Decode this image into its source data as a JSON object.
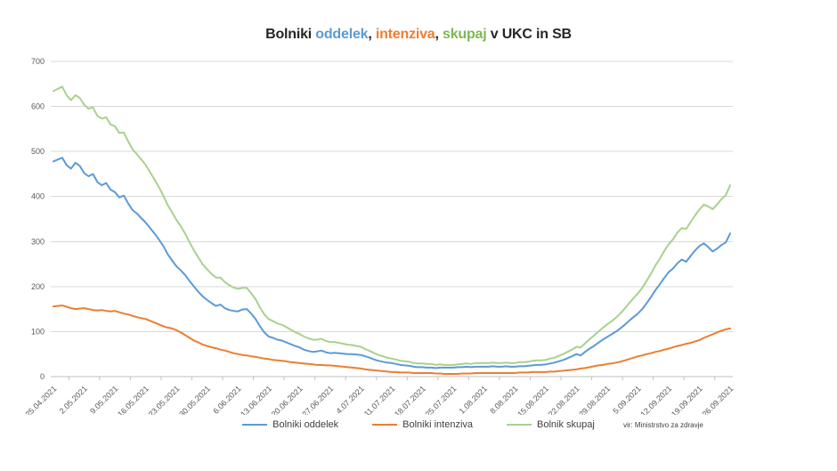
{
  "title": {
    "parts": [
      {
        "text": "Bolniki ",
        "color": "#262626"
      },
      {
        "text": "oddelek",
        "color": "#5B9BD5"
      },
      {
        "text": ", ",
        "color": "#262626"
      },
      {
        "text": "intenziva",
        "color": "#ED7D31"
      },
      {
        "text": ", ",
        "color": "#262626"
      },
      {
        "text": "skupaj",
        "color": "#7CB854"
      },
      {
        "text": " v UKC in SB",
        "color": "#262626"
      }
    ]
  },
  "source_note": "vir: Ministrstvo za zdravje",
  "chart_data": {
    "type": "line",
    "title": "Bolniki oddelek, intenziva, skupaj v UKC in SB",
    "xlabel": "",
    "ylabel": "",
    "ylim": [
      0,
      700
    ],
    "y_ticks": [
      0,
      100,
      200,
      300,
      400,
      500,
      600,
      700
    ],
    "grid": true,
    "legend_position": "bottom",
    "x_is_daily": true,
    "x_tick_labels": [
      "25.04.2021",
      "2.05.2021",
      "9.05.2021",
      "16.05.2021",
      "23.05.2021",
      "30.05.2021",
      "6.06.2021",
      "13.06.2021",
      "20.06.2021",
      "27.06.2021",
      "4.07.2021",
      "11.07.2021",
      "18.07.2021",
      "25.07.2021",
      "1.08.2021",
      "8.08.2021",
      "15.08.2021",
      "22.08.2021",
      "29.08.2021",
      "5.09.2021",
      "12.09.2021",
      "19.09.2021",
      "26.09.2021"
    ],
    "series": [
      {
        "name": "Bolniki oddelek",
        "color": "#5B9BD5",
        "values": [
          478,
          482,
          486,
          470,
          462,
          475,
          468,
          452,
          445,
          450,
          432,
          425,
          430,
          415,
          410,
          398,
          402,
          385,
          370,
          362,
          352,
          342,
          330,
          318,
          305,
          290,
          272,
          258,
          245,
          236,
          225,
          212,
          200,
          188,
          178,
          170,
          163,
          157,
          160,
          152,
          148,
          146,
          145,
          149,
          150,
          140,
          128,
          112,
          98,
          89,
          86,
          82,
          80,
          76,
          72,
          68,
          65,
          60,
          57,
          55,
          56,
          58,
          54,
          52,
          53,
          52,
          51,
          50,
          50,
          49,
          48,
          45,
          42,
          38,
          35,
          33,
          31,
          30,
          28,
          26,
          25,
          24,
          22,
          21,
          21,
          20,
          20,
          19,
          20,
          20,
          20,
          20,
          21,
          21,
          22,
          21,
          22,
          22,
          22,
          22,
          23,
          22,
          22,
          23,
          22,
          22,
          23,
          23,
          24,
          25,
          26,
          26,
          27,
          29,
          31,
          34,
          37,
          41,
          45,
          50,
          47,
          55,
          62,
          68,
          75,
          82,
          88,
          94,
          100,
          107,
          115,
          124,
          132,
          140,
          150,
          163,
          177,
          192,
          205,
          219,
          232,
          240,
          252,
          260,
          255,
          268,
          280,
          290,
          296,
          288,
          278,
          284,
          292,
          298,
          318
        ]
      },
      {
        "name": "Bolniki intenziva",
        "color": "#ED7D31",
        "values": [
          156,
          157,
          158,
          155,
          152,
          150,
          151,
          152,
          150,
          148,
          147,
          148,
          146,
          145,
          146,
          143,
          140,
          138,
          135,
          132,
          130,
          128,
          124,
          120,
          116,
          112,
          109,
          107,
          103,
          98,
          92,
          86,
          80,
          76,
          71,
          68,
          65,
          63,
          60,
          58,
          55,
          52,
          50,
          48,
          47,
          45,
          44,
          42,
          40,
          39,
          37,
          36,
          35,
          34,
          32,
          31,
          30,
          29,
          28,
          27,
          26,
          26,
          25,
          25,
          24,
          23,
          22,
          21,
          20,
          19,
          18,
          16,
          15,
          14,
          13,
          12,
          11,
          10,
          10,
          9,
          9,
          9,
          8,
          8,
          8,
          8,
          8,
          7,
          7,
          6,
          6,
          6,
          6,
          7,
          7,
          7,
          8,
          8,
          8,
          8,
          8,
          8,
          8,
          8,
          8,
          8,
          9,
          9,
          9,
          10,
          10,
          10,
          10,
          11,
          11,
          12,
          13,
          14,
          15,
          16,
          18,
          19,
          21,
          23,
          25,
          26,
          28,
          29,
          31,
          33,
          36,
          39,
          42,
          45,
          47,
          50,
          52,
          55,
          57,
          60,
          62,
          65,
          68,
          70,
          73,
          75,
          78,
          81,
          86,
          90,
          94,
          98,
          102,
          105,
          107
        ]
      },
      {
        "name": "Bolnik skupaj",
        "color": "#A9D18E",
        "values": [
          634,
          639,
          644,
          625,
          614,
          625,
          619,
          604,
          595,
          598,
          579,
          573,
          576,
          560,
          556,
          541,
          542,
          523,
          505,
          494,
          482,
          470,
          454,
          438,
          421,
          402,
          381,
          365,
          348,
          334,
          317,
          298,
          280,
          264,
          249,
          238,
          228,
          220,
          220,
          210,
          203,
          198,
          195,
          197,
          197,
          185,
          172,
          154,
          138,
          128,
          123,
          118,
          115,
          110,
          104,
          99,
          95,
          89,
          85,
          82,
          82,
          84,
          79,
          77,
          77,
          75,
          73,
          71,
          70,
          68,
          66,
          61,
          57,
          52,
          48,
          45,
          42,
          40,
          38,
          35,
          34,
          33,
          30,
          29,
          29,
          28,
          28,
          26,
          27,
          26,
          26,
          26,
          27,
          28,
          29,
          28,
          30,
          30,
          30,
          30,
          31,
          30,
          30,
          31,
          30,
          30,
          32,
          32,
          33,
          35,
          36,
          36,
          37,
          40,
          42,
          46,
          50,
          55,
          60,
          66,
          65,
          74,
          83,
          91,
          100,
          108,
          116,
          123,
          131,
          140,
          151,
          163,
          174,
          185,
          197,
          213,
          229,
          247,
          262,
          279,
          294,
          305,
          320,
          330,
          328,
          343,
          358,
          371,
          382,
          378,
          372,
          382,
          394,
          403,
          425
        ]
      }
    ]
  }
}
